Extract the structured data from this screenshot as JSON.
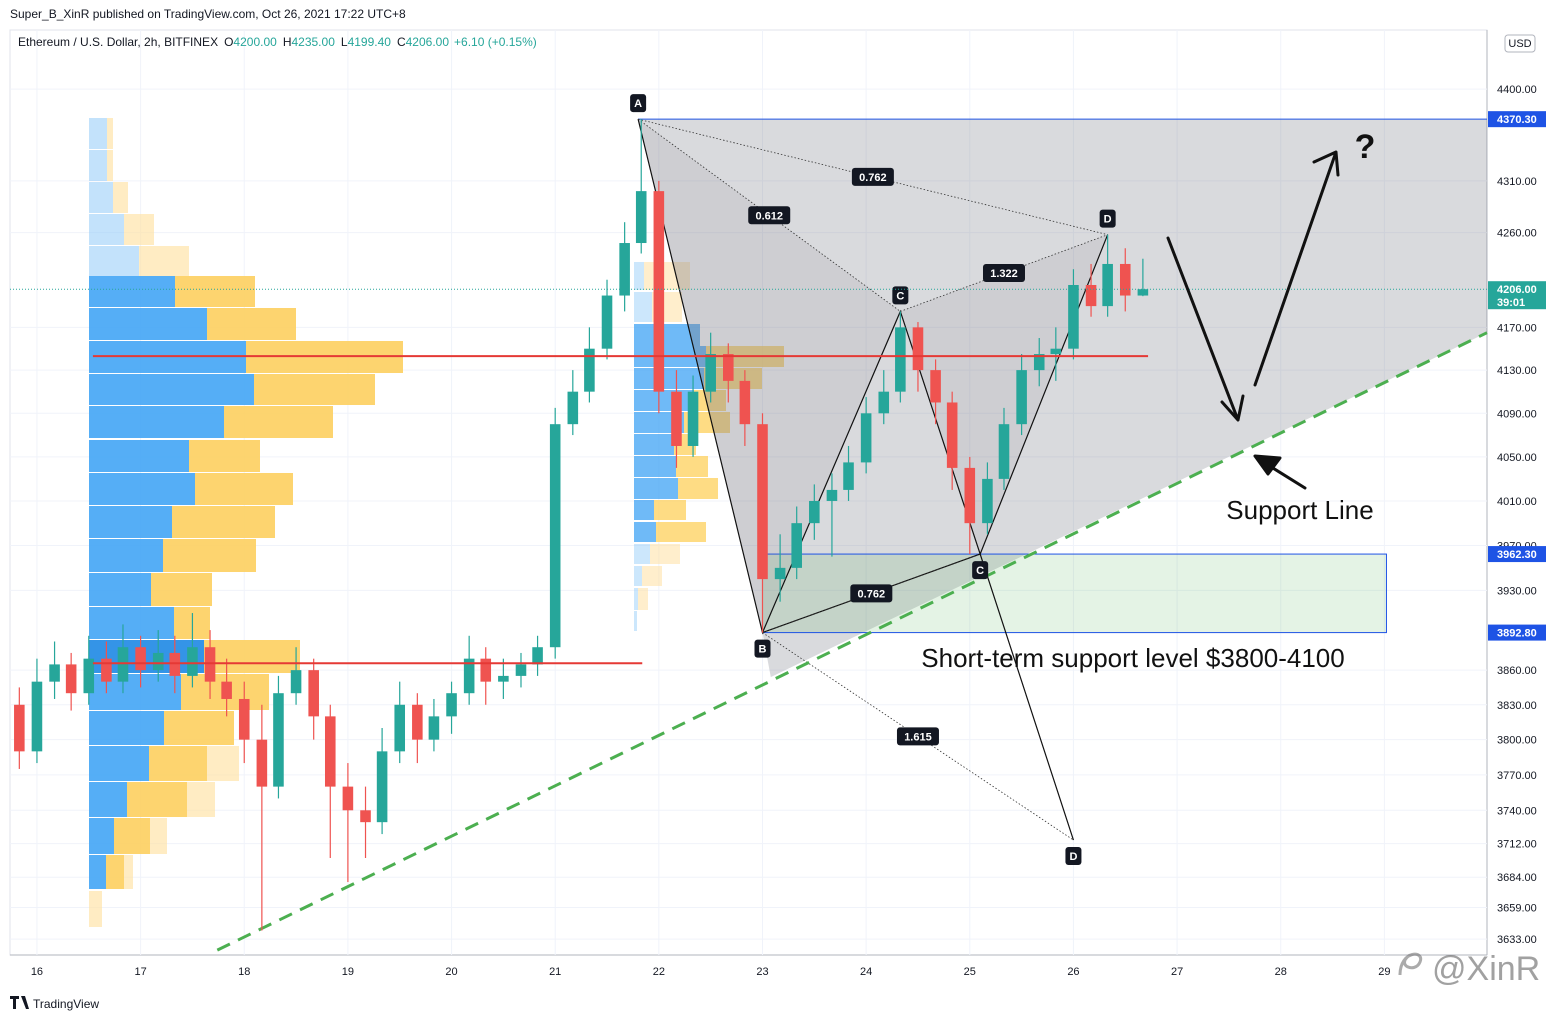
{
  "header": "Super_B_XinR published on TradingView.com, Oct 26, 2021 17:22 UTC+8",
  "footer": "TradingView",
  "watermark": "@XinR",
  "annotations": [
    "Support Line",
    "Short-term support level $3800-4100",
    "?"
  ],
  "chart_data": {
    "type": "candlestick",
    "symbol": "Ethereum / U.S. Dollar, 2h, BITFINEX",
    "quote": [
      [
        "O",
        "4200.00"
      ],
      [
        "H",
        "4235.00"
      ],
      [
        "L",
        "4199.40"
      ],
      [
        "C",
        "4206.00"
      ]
    ],
    "change": "+6.10 (+0.15%)",
    "currency": "USD",
    "countdown": "39:01",
    "up_color": "#26a69a",
    "down_color": "#ef5350",
    "x": [
      15.83,
      16.0,
      16.17,
      16.33,
      16.5,
      16.67,
      16.83,
      17.0,
      17.17,
      17.33,
      17.5,
      17.67,
      17.83,
      18.0,
      18.17,
      18.33,
      18.5,
      18.67,
      18.83,
      19.0,
      19.17,
      19.33,
      19.5,
      19.67,
      19.83,
      20.0,
      20.17,
      20.33,
      20.5,
      20.67,
      20.83,
      21.0,
      21.17,
      21.33,
      21.5,
      21.67,
      21.83,
      22.0,
      22.17,
      22.33,
      22.5,
      22.67,
      22.83,
      23.0,
      23.17,
      23.33,
      23.5,
      23.67,
      23.83,
      24.0,
      24.17,
      24.33,
      24.5,
      24.67,
      24.83,
      25.0,
      25.17,
      25.33,
      25.5,
      25.67,
      25.83,
      26.0,
      26.17,
      26.33,
      26.5,
      26.67
    ],
    "open": [
      3830,
      3790,
      3850,
      3865,
      3840,
      3870,
      3850,
      3880,
      3860,
      3875,
      3855,
      3880,
      3850,
      3835,
      3800,
      3760,
      3840,
      3860,
      3820,
      3760,
      3740,
      3730,
      3790,
      3830,
      3800,
      3820,
      3840,
      3870,
      3850,
      3855,
      3865,
      3880,
      4080,
      4110,
      4150,
      4200,
      4250,
      4300,
      4110,
      4060,
      4110,
      4145,
      4120,
      4080,
      3940,
      3950,
      3990,
      4010,
      4020,
      4045,
      4090,
      4110,
      4170,
      4130,
      4100,
      4040,
      3990,
      4030,
      4080,
      4130,
      4145,
      4150,
      4210,
      4190,
      4230,
      4200
    ],
    "high": [
      3845,
      3870,
      3885,
      3875,
      3890,
      3885,
      3900,
      3890,
      3895,
      3890,
      3910,
      3895,
      3870,
      3850,
      3830,
      3855,
      3880,
      3870,
      3830,
      3780,
      3760,
      3810,
      3850,
      3840,
      3835,
      3850,
      3890,
      3880,
      3870,
      3875,
      3890,
      4095,
      4130,
      4170,
      4215,
      4270,
      4370.3,
      4310,
      4130,
      4125,
      4165,
      4155,
      4130,
      4090,
      3980,
      4005,
      4025,
      4035,
      4060,
      4105,
      4130,
      4185,
      4175,
      4140,
      4110,
      4050,
      4045,
      4095,
      4145,
      4160,
      4170,
      4225,
      4230,
      4258,
      4245,
      4235
    ],
    "low": [
      3775,
      3780,
      3835,
      3825,
      3830,
      3840,
      3840,
      3845,
      3850,
      3840,
      3845,
      3835,
      3820,
      3780,
      3640,
      3750,
      3830,
      3800,
      3700,
      3680,
      3700,
      3720,
      3780,
      3780,
      3790,
      3805,
      3830,
      3830,
      3835,
      3845,
      3855,
      3870,
      4070,
      4100,
      4140,
      4185,
      4240,
      4090,
      4040,
      4050,
      4100,
      4100,
      4060,
      3892.8,
      3920,
      3940,
      3975,
      3960,
      4010,
      4035,
      4080,
      4100,
      4110,
      4080,
      4020,
      3962.3,
      3980,
      4020,
      4070,
      4115,
      4120,
      4140,
      4180,
      4180,
      4185,
      4199.4
    ],
    "close": [
      3790,
      3850,
      3865,
      3840,
      3870,
      3850,
      3880,
      3860,
      3875,
      3855,
      3880,
      3850,
      3835,
      3800,
      3760,
      3840,
      3860,
      3820,
      3760,
      3740,
      3730,
      3790,
      3830,
      3800,
      3820,
      3840,
      3870,
      3850,
      3855,
      3865,
      3880,
      4080,
      4110,
      4150,
      4200,
      4250,
      4300,
      4110,
      4060,
      4110,
      4145,
      4120,
      4080,
      3940,
      3950,
      3990,
      4010,
      4020,
      4045,
      4090,
      4110,
      4170,
      4130,
      4100,
      4040,
      3990,
      4030,
      4080,
      4130,
      4145,
      4150,
      4210,
      4190,
      4230,
      4200,
      4206
    ],
    "xlim": [
      15.74,
      29.99
    ],
    "xticks": [
      16,
      17,
      18,
      19,
      20,
      21,
      22,
      23,
      24,
      25,
      26,
      27,
      28,
      29
    ],
    "ylim": [
      3620,
      4459
    ],
    "log_scale": true,
    "grid": true,
    "yticks": [
      {
        "value": 4400,
        "label": "4400.00"
      },
      {
        "value": 4310,
        "label": "4310.00"
      },
      {
        "value": 4260,
        "label": "4260.00"
      },
      {
        "value": 4170,
        "label": "4170.00"
      },
      {
        "value": 4130,
        "label": "4130.00"
      },
      {
        "value": 4090,
        "label": "4090.00"
      },
      {
        "value": 4050,
        "label": "4050.00"
      },
      {
        "value": 4010,
        "label": "4010.00"
      },
      {
        "value": 3970,
        "label": "3970.00"
      },
      {
        "value": 3930,
        "label": "3930.00"
      },
      {
        "value": 3860,
        "label": "3860.00"
      },
      {
        "value": 3830,
        "label": "3830.00"
      },
      {
        "value": 3800,
        "label": "3800.00"
      },
      {
        "value": 3770,
        "label": "3770.00"
      },
      {
        "value": 3740,
        "label": "3740.00"
      },
      {
        "value": 3712,
        "label": "3712.00"
      },
      {
        "value": 3684,
        "label": "3684.00"
      },
      {
        "value": 3659,
        "label": "3659.00"
      },
      {
        "value": 3633,
        "label": "3633.00"
      }
    ],
    "price_labels": [
      {
        "value": 4370.3,
        "label": "4370.30",
        "color": "#1e53e5"
      },
      {
        "value": 4206,
        "label": "4206.00",
        "color": "#26a69a"
      },
      {
        "value": 3962.3,
        "label": "3962.30",
        "color": "#1e53e5"
      },
      {
        "value": 3892.8,
        "label": "3892.80",
        "color": "#1e53e5"
      }
    ],
    "levels": [
      {
        "value": 4143,
        "from": 16.54,
        "to": 26.72,
        "color": "#e53935"
      },
      {
        "value": 3866,
        "from": 16.54,
        "to": 21.84,
        "color": "#e53935"
      }
    ],
    "support_zone": {
      "from": 23.0,
      "to": 29.02,
      "top": 3962.3,
      "bottom": 3892.8,
      "color": "#4caf50"
    },
    "support_line": {
      "x": [
        17.74,
        29.99
      ],
      "y": [
        3624,
        4165
      ],
      "color": "#4caf50"
    },
    "wedge": {
      "x": [
        21.8,
        29.99,
        29.99,
        23.08,
        23.0
      ],
      "y": [
        4370.3,
        4370.3,
        4165,
        3854,
        3892.8
      ]
    },
    "patterns": [
      {
        "points": [
          {
            "label": "A",
            "x": 21.8,
            "y": 4370.3
          },
          {
            "label": "B",
            "x": 23.0,
            "y": 3892.8
          },
          {
            "label": "C",
            "x": 24.33,
            "y": 4185
          },
          {
            "label": null,
            "x": 25.1,
            "y": 3962.3
          },
          {
            "label": "D",
            "x": 26.33,
            "y": 4258
          }
        ],
        "ratios": [
          {
            "label": 0.612,
            "from": 0,
            "to": 2
          },
          {
            "label": 0.762,
            "from": 0,
            "to": 4
          },
          {
            "label": 1.322,
            "from": 2,
            "to": 4
          }
        ]
      },
      {
        "points": [
          {
            "label": null,
            "x": 23.0,
            "y": 3892.8
          },
          {
            "label": "C",
            "x": 25.1,
            "y": 3962.3
          },
          {
            "label": "D",
            "x": 26.0,
            "y": 3715
          }
        ],
        "ratios": [
          {
            "label": 0.762,
            "from": 0,
            "to": 1
          },
          {
            "label": 1.615,
            "from": 0,
            "to": 2
          }
        ]
      }
    ]
  }
}
